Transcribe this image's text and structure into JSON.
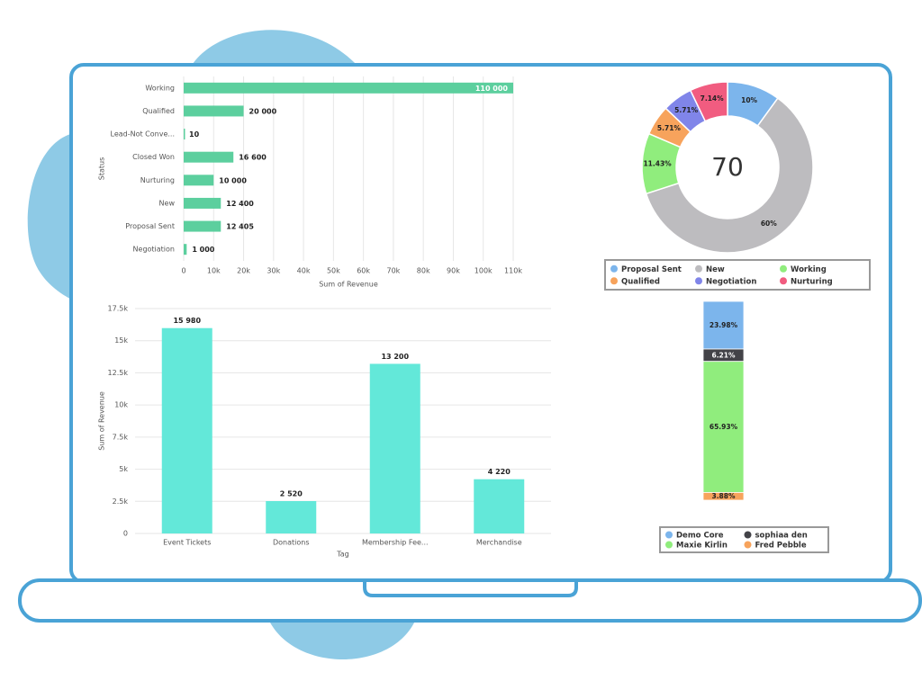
{
  "chart_data": [
    {
      "type": "bar",
      "orientation": "horizontal",
      "x_label": "Sum of Revenue",
      "y_label": "Status",
      "categories": [
        "Working",
        "Qualified",
        "Lead-Not Conve...",
        "Closed Won",
        "Nurturing",
        "New",
        "Proposal Sent",
        "Negotiation"
      ],
      "values": [
        110000,
        20000,
        10,
        16600,
        10000,
        12400,
        12405,
        1000
      ],
      "value_labels": [
        "110 000",
        "20 000",
        "10",
        "16 600",
        "10 000",
        "12 400",
        "12 405",
        "1 000"
      ],
      "color": "#5ccf9e",
      "xlim": [
        0,
        110000
      ],
      "xticks": [
        0,
        {
          "value": 10000,
          "label": "10k"
        },
        {
          "value": 20000,
          "label": "20k"
        },
        {
          "value": 30000,
          "label": "30k"
        },
        {
          "value": 40000,
          "label": "40k"
        },
        {
          "value": 50000,
          "label": "50k"
        },
        {
          "value": 60000,
          "label": "60k"
        },
        {
          "value": 70000,
          "label": "70k"
        },
        {
          "value": 80000,
          "label": "80k"
        },
        {
          "value": 90000,
          "label": "90k"
        },
        {
          "value": 100000,
          "label": "100k"
        },
        {
          "value": 110000,
          "label": "110k"
        }
      ],
      "grid": true
    },
    {
      "type": "bar",
      "orientation": "vertical",
      "x_label": "Tag",
      "y_label": "Sum of Revenue",
      "categories": [
        "Event Tickets",
        "Donations",
        "Membership Fee...",
        "Merchandise"
      ],
      "values": [
        15980,
        2520,
        13200,
        4220
      ],
      "value_labels": [
        "15 980",
        "2 520",
        "13 200",
        "4 220"
      ],
      "color": "#63e8d9",
      "ylim": [
        0,
        17500
      ],
      "yticks": [
        0,
        {
          "value": 2500,
          "label": "2.5k"
        },
        {
          "value": 5000,
          "label": "5k"
        },
        {
          "value": 7500,
          "label": "7.5k"
        },
        {
          "value": 10000,
          "label": "10k"
        },
        {
          "value": 12500,
          "label": "12.5k"
        },
        {
          "value": 15000,
          "label": "15k"
        },
        {
          "value": 17500,
          "label": "17.5k"
        }
      ],
      "grid": true
    },
    {
      "type": "pie",
      "donut": true,
      "center_label": "70",
      "categories": [
        "Proposal Sent",
        "New",
        "Working",
        "Qualified",
        "Negotiation",
        "Nurturing"
      ],
      "values": [
        10,
        60,
        11.43,
        5.71,
        5.71,
        7.14
      ],
      "value_labels": [
        "10%",
        "60%",
        "11.43%",
        "5.71%",
        "5.71%",
        "7.14%"
      ],
      "colors": [
        "#7cb5ec",
        "#bdbcbf",
        "#90ed7d",
        "#f7a35c",
        "#8085e9",
        "#f15c80"
      ]
    },
    {
      "type": "stacked-bar",
      "series": [
        {
          "name": "Demo Core",
          "color": "#7cb5ec",
          "values": [
            23.98
          ],
          "value_labels": [
            "23.98%"
          ]
        },
        {
          "name": "sophiaa den",
          "color": "#434348",
          "values": [
            6.21
          ],
          "value_labels": [
            "6.21%"
          ]
        },
        {
          "name": "Maxie Kirlin",
          "color": "#90ed7d",
          "values": [
            65.93
          ],
          "value_labels": [
            "65.93%"
          ]
        },
        {
          "name": "Fred Pebble",
          "color": "#f7a35c",
          "values": [
            3.88
          ],
          "value_labels": [
            "3.88%"
          ]
        }
      ]
    }
  ]
}
